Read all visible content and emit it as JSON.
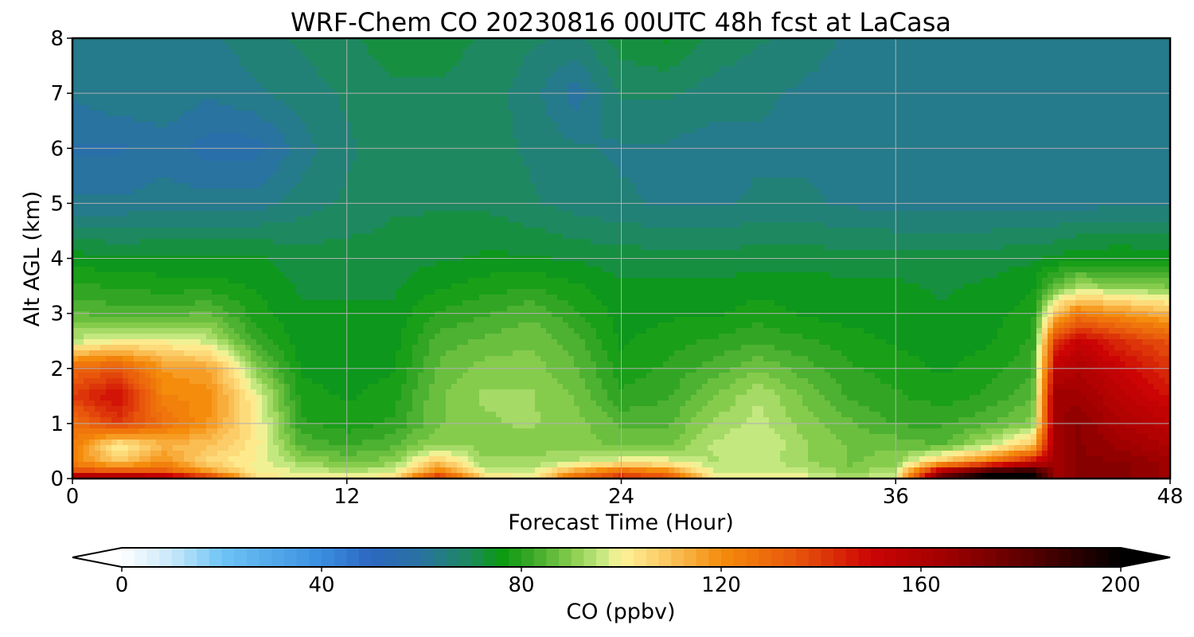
{
  "chart_data": {
    "type": "heatmap",
    "title": "WRF-Chem CO  20230816 00UTC 48h fcst at LaCasa",
    "xlabel": "Forecast Time (Hour)",
    "ylabel": "Alt AGL (km)",
    "xlim": [
      0,
      48
    ],
    "ylim": [
      0,
      8
    ],
    "x_ticks": [
      "0",
      "12",
      "24",
      "36",
      "48"
    ],
    "y_ticks": [
      "0",
      "1",
      "2",
      "3",
      "4",
      "5",
      "6",
      "7",
      "8"
    ],
    "grid": true,
    "x": [
      0,
      2,
      4,
      6,
      8,
      10,
      12,
      14,
      16,
      18,
      20,
      22,
      24,
      26,
      28,
      30,
      32,
      34,
      36,
      38,
      40,
      42,
      43,
      44,
      46,
      48
    ],
    "y": [
      0,
      0.1,
      0.3,
      0.6,
      1.0,
      1.5,
      2.0,
      2.5,
      3.0,
      3.5,
      4.0,
      5.0,
      6.0,
      7.0,
      8.0
    ],
    "z": [
      [
        170,
        175,
        170,
        150,
        105,
        100,
        100,
        105,
        150,
        110,
        100,
        130,
        145,
        140,
        102,
        102,
        100,
        95,
        100,
        180,
        200,
        200,
        165,
        170,
        170,
        165
      ],
      [
        140,
        140,
        135,
        120,
        100,
        98,
        95,
        98,
        125,
        98,
        96,
        120,
        135,
        125,
        98,
        98,
        96,
        90,
        95,
        170,
        200,
        200,
        165,
        170,
        170,
        165
      ],
      [
        122,
        108,
        120,
        105,
        100,
        92,
        88,
        90,
        110,
        92,
        92,
        95,
        100,
        100,
        94,
        96,
        92,
        88,
        90,
        110,
        125,
        150,
        165,
        170,
        170,
        165
      ],
      [
        125,
        100,
        112,
        110,
        102,
        85,
        82,
        85,
        92,
        90,
        90,
        90,
        88,
        88,
        95,
        98,
        92,
        88,
        88,
        85,
        95,
        110,
        165,
        170,
        165,
        160
      ],
      [
        128,
        140,
        128,
        118,
        102,
        80,
        78,
        80,
        88,
        91,
        92,
        90,
        85,
        85,
        92,
        96,
        90,
        86,
        82,
        82,
        85,
        90,
        165,
        170,
        160,
        155
      ],
      [
        140,
        150,
        122,
        120,
        100,
        78,
        76,
        78,
        88,
        92,
        92,
        88,
        80,
        82,
        88,
        94,
        88,
        82,
        80,
        78,
        80,
        85,
        165,
        165,
        155,
        148
      ],
      [
        130,
        135,
        118,
        115,
        90,
        76,
        75,
        76,
        86,
        90,
        90,
        86,
        78,
        80,
        84,
        88,
        84,
        80,
        78,
        76,
        78,
        82,
        155,
        160,
        150,
        142
      ],
      [
        95,
        100,
        100,
        96,
        82,
        75,
        74,
        75,
        84,
        86,
        88,
        84,
        76,
        78,
        80,
        82,
        80,
        78,
        76,
        75,
        76,
        80,
        140,
        152,
        142,
        135
      ],
      [
        86,
        84,
        84,
        86,
        78,
        74,
        74,
        74,
        80,
        82,
        85,
        80,
        75,
        76,
        76,
        78,
        76,
        75,
        75,
        74,
        75,
        78,
        110,
        125,
        118,
        112
      ],
      [
        80,
        79,
        78,
        78,
        76,
        73,
        73,
        73,
        76,
        78,
        79,
        77,
        74,
        74,
        74,
        75,
        75,
        74,
        74,
        73,
        74,
        76,
        86,
        92,
        90,
        88
      ],
      [
        75,
        74,
        74,
        74,
        74,
        72,
        72,
        72,
        73,
        74,
        74,
        73,
        72,
        72,
        72,
        72,
        72,
        72,
        72,
        72,
        72,
        73,
        74,
        76,
        76,
        75
      ],
      [
        62,
        62,
        63,
        63,
        63,
        66,
        68,
        70,
        70,
        70,
        68,
        66,
        65,
        64,
        64,
        65,
        65,
        64,
        63,
        63,
        63,
        63,
        63,
        63,
        64,
        64
      ],
      [
        58,
        58,
        60,
        57,
        57,
        63,
        67,
        69,
        70,
        69,
        67,
        65,
        64,
        64,
        63,
        64,
        64,
        63,
        63,
        63,
        63,
        63,
        63,
        63,
        63,
        63
      ],
      [
        62,
        64,
        64,
        62,
        64,
        66,
        68,
        70,
        70,
        69,
        66,
        60,
        68,
        68,
        66,
        65,
        64,
        63,
        63,
        63,
        63,
        63,
        63,
        63,
        64,
        64
      ],
      [
        63,
        64,
        64,
        64,
        66,
        68,
        70,
        72,
        72,
        70,
        68,
        67,
        72,
        74,
        70,
        68,
        66,
        64,
        63,
        63,
        63,
        63,
        63,
        63,
        63,
        63
      ]
    ],
    "colorbar": {
      "label": "CO  (ppbv)",
      "min": 0,
      "max": 200,
      "ticks": [
        "0",
        "40",
        "80",
        "120",
        "160",
        "200"
      ],
      "extend": "both",
      "colors": [
        {
          "v": 0,
          "c": "#ffffff"
        },
        {
          "v": 10,
          "c": "#c8e8fa"
        },
        {
          "v": 20,
          "c": "#6ec4f5"
        },
        {
          "v": 40,
          "c": "#3a8ee0"
        },
        {
          "v": 50,
          "c": "#2c66c0"
        },
        {
          "v": 60,
          "c": "#2873a0"
        },
        {
          "v": 70,
          "c": "#1d8a5a"
        },
        {
          "v": 76,
          "c": "#0a9a10"
        },
        {
          "v": 82,
          "c": "#3aa828"
        },
        {
          "v": 90,
          "c": "#86cc4c"
        },
        {
          "v": 96,
          "c": "#c4e880"
        },
        {
          "v": 100,
          "c": "#fff49a"
        },
        {
          "v": 110,
          "c": "#fac25a"
        },
        {
          "v": 120,
          "c": "#f58c0c"
        },
        {
          "v": 135,
          "c": "#e8560c"
        },
        {
          "v": 150,
          "c": "#cc0404"
        },
        {
          "v": 165,
          "c": "#a00000"
        },
        {
          "v": 180,
          "c": "#600000"
        },
        {
          "v": 200,
          "c": "#000000"
        }
      ]
    }
  }
}
